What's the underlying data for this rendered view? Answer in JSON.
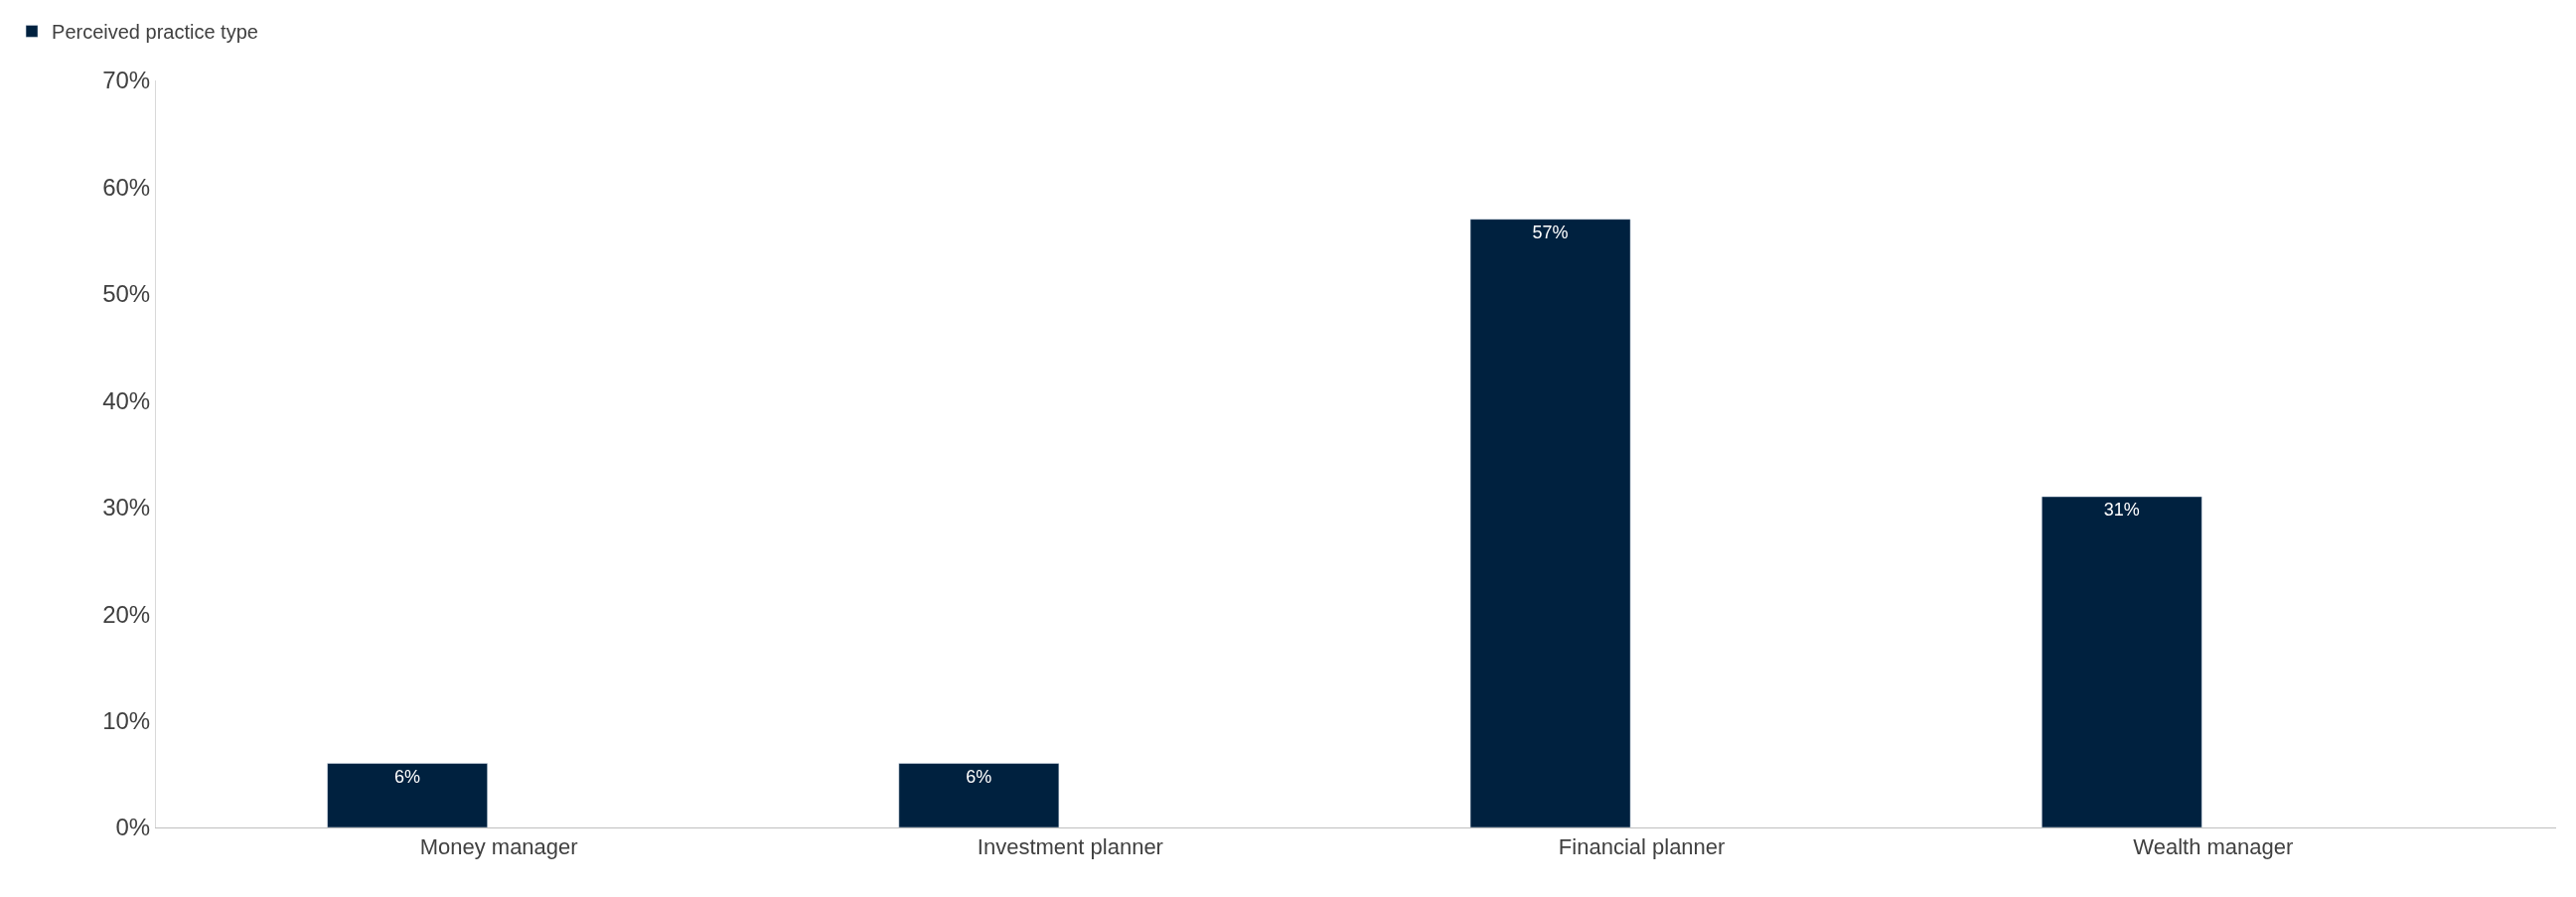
{
  "chart_data": {
    "type": "bar",
    "categories": [
      "Money manager",
      "Investment planner",
      "Financial planner",
      "Wealth manager"
    ],
    "series": [
      {
        "name": "Perceived practice type",
        "color": "#00213f",
        "values": [
          6,
          6,
          57,
          31
        ],
        "value_labels": [
          "6%",
          "6%",
          "57%",
          "31%"
        ]
      }
    ],
    "ylim": [
      0,
      70
    ],
    "yticks": [
      {
        "value": 0,
        "label": "0%"
      },
      {
        "value": 10,
        "label": "10%"
      },
      {
        "value": 20,
        "label": "20%"
      },
      {
        "value": 30,
        "label": "30%"
      },
      {
        "value": 40,
        "label": "40%"
      },
      {
        "value": 50,
        "label": "50%"
      },
      {
        "value": 60,
        "label": "60%"
      },
      {
        "value": 70,
        "label": "70%"
      }
    ],
    "legend": "top left"
  }
}
